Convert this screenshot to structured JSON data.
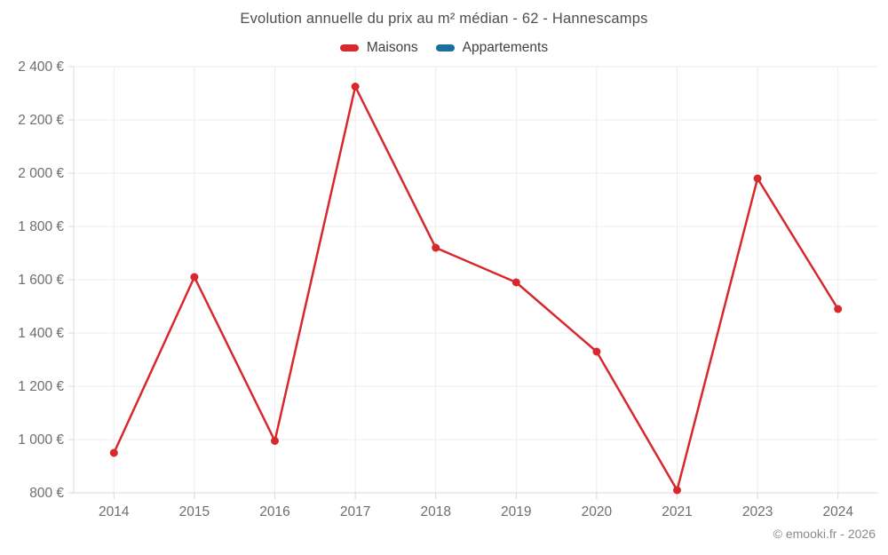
{
  "title": "Evolution annuelle du prix au m² médian - 62 - Hannescamps",
  "legend": [
    {
      "label": "Maisons",
      "color": "#d7282d"
    },
    {
      "label": "Appartements",
      "color": "#1a6f9c"
    }
  ],
  "footer": "© emooki.fr - 2026",
  "axes": {
    "y_tick_labels": [
      "800 €",
      "1 000 €",
      "1 200 €",
      "1 400 €",
      "1 600 €",
      "1 800 €",
      "2 000 €",
      "2 200 €",
      "2 400 €"
    ],
    "x_tick_labels": [
      "2014",
      "2015",
      "2016",
      "2017",
      "2018",
      "2019",
      "2020",
      "2021",
      "2023",
      "2024"
    ]
  },
  "chart_data": {
    "type": "line",
    "title": "Evolution annuelle du prix au m² médian - 62 - Hannescamps",
    "categories": [
      "2014",
      "2015",
      "2016",
      "2017",
      "2018",
      "2019",
      "2020",
      "2021",
      "2023",
      "2024"
    ],
    "series": [
      {
        "name": "Maisons",
        "color": "#d7282d",
        "values": [
          950,
          1610,
          995,
          2325,
          1720,
          1590,
          1330,
          810,
          1980,
          1490
        ]
      },
      {
        "name": "Appartements",
        "color": "#1a6f9c",
        "values": []
      }
    ],
    "xlabel": "",
    "ylabel": "",
    "y_unit": "€",
    "ylim": [
      800,
      2400
    ],
    "ytick_step": 200,
    "grid": true,
    "legend_position": "top"
  }
}
